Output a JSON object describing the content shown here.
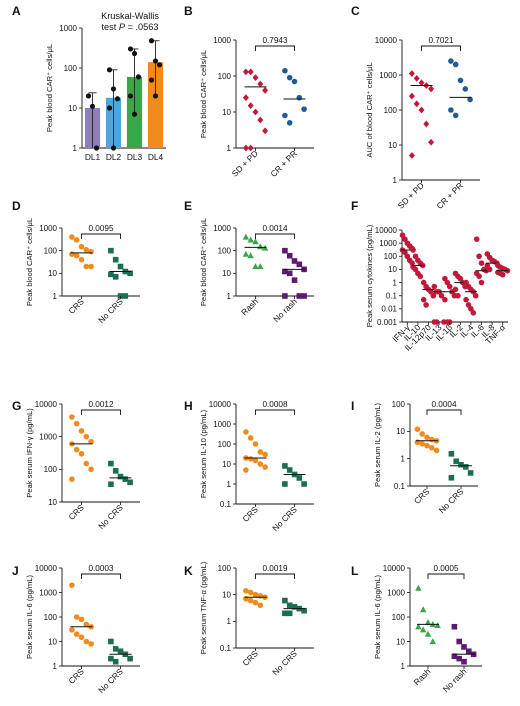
{
  "chart_data": [
    {
      "type": "bar",
      "panel": "A",
      "title": "Kruskal-Wallis\ntest P = .0563",
      "ylabel": "Peak blood CAR⁺ cells/μL",
      "ylim": [
        1,
        1000
      ],
      "scale": "log",
      "categories": [
        "DL1",
        "DL2",
        "DL3",
        "DL4"
      ],
      "colors": [
        "#8f7fb8",
        "#4fa6dd",
        "#3aa64a",
        "#f08b1d"
      ],
      "values": [
        10,
        18,
        60,
        140
      ],
      "err_low": [
        1,
        1,
        7,
        20
      ],
      "err_high": [
        24,
        90,
        300,
        480
      ],
      "points": [
        [
          20,
          11,
          1
        ],
        [
          90,
          30,
          17,
          10,
          1
        ],
        [
          300,
          230,
          60,
          20,
          7
        ],
        [
          480,
          150,
          120,
          50,
          20
        ]
      ]
    },
    {
      "type": "scatter",
      "panel": "B",
      "ylabel": "Peak blood CAR⁺ cells/μL",
      "ylim": [
        1,
        1000
      ],
      "scale": "log",
      "pvalue": "0.7943",
      "categories": [
        "SD + PD",
        "CR + PR"
      ],
      "colors": [
        "#c01a3a",
        "#1f5c97"
      ],
      "markers": [
        "diamond",
        "circle"
      ],
      "medians": [
        50,
        23
      ],
      "points": [
        [
          130,
          130,
          90,
          60,
          40,
          25,
          15,
          10,
          6,
          3,
          1,
          1
        ],
        [
          140,
          90,
          70,
          25,
          12,
          8,
          5
        ]
      ]
    },
    {
      "type": "scatter",
      "panel": "C",
      "ylabel": "AUC of blood CAR⁺ cells/μL",
      "ylim": [
        1,
        10000
      ],
      "scale": "log",
      "pvalue": "0.7021",
      "categories": [
        "SD + PD",
        "CR + PR"
      ],
      "colors": [
        "#c01a3a",
        "#1f5c97"
      ],
      "markers": [
        "diamond",
        "circle"
      ],
      "medians": [
        500,
        230
      ],
      "points": [
        [
          1100,
          800,
          600,
          500,
          400,
          250,
          150,
          100,
          40,
          12,
          5
        ],
        [
          2500,
          2000,
          700,
          400,
          200,
          100,
          70
        ]
      ]
    },
    {
      "type": "scatter",
      "panel": "D",
      "ylabel": "Peak blood CAR⁺ cells/μL",
      "ylim": [
        1,
        1000
      ],
      "scale": "log",
      "pvalue": "0.0095",
      "categories": [
        "CRS",
        "No CRS"
      ],
      "colors": [
        "#f08b1d",
        "#1b6e52"
      ],
      "markers": [
        "circle",
        "square"
      ],
      "medians": [
        80,
        12
      ],
      "points": [
        [
          400,
          300,
          150,
          110,
          90,
          70,
          60,
          40,
          20,
          20
        ],
        [
          100,
          40,
          20,
          12,
          10,
          9,
          7,
          1,
          1
        ]
      ]
    },
    {
      "type": "scatter",
      "panel": "E",
      "ylabel": "Peak blood CAR⁺ cells/μL",
      "ylim": [
        1,
        1000
      ],
      "scale": "log",
      "pvalue": "0.0014",
      "categories": [
        "Rash",
        "No rash"
      ],
      "colors": [
        "#3aa64a",
        "#5c1a73"
      ],
      "markers": [
        "triangle",
        "square"
      ],
      "medians": [
        140,
        15
      ],
      "points": [
        [
          400,
          300,
          250,
          150,
          130,
          70,
          60,
          20,
          20
        ],
        [
          100,
          60,
          35,
          25,
          15,
          12,
          10,
          5,
          1,
          1,
          1
        ]
      ]
    },
    {
      "type": "scatter",
      "panel": "F",
      "ylabel": "Peak serum cytokines (pg/mL)",
      "ylim": [
        0.001,
        10000
      ],
      "scale": "log",
      "categories": [
        "IFN-γ",
        "IL-10",
        "IL-12p70",
        "IL-13",
        "IL-1β",
        "IL-2",
        "IL-4",
        "IL-6",
        "IL-8",
        "TNF-α"
      ],
      "colors": [
        "#c01a3a"
      ],
      "markers": [
        "circle"
      ],
      "medians": [
        300,
        20,
        0.3,
        0.2,
        0.2,
        1,
        0.2,
        8,
        30,
        8
      ],
      "points": [
        [
          4000,
          2000,
          1000,
          600,
          400,
          300,
          200,
          100,
          50,
          30
        ],
        [
          300,
          100,
          50,
          30,
          20,
          15,
          10,
          5,
          3
        ],
        [
          1,
          0.5,
          0.3,
          0.2,
          0.1,
          0.05,
          0.02
        ],
        [
          0.5,
          0.2,
          0.2,
          0.1,
          0.001,
          0.001,
          0.001
        ],
        [
          2,
          1,
          0.5,
          0.2,
          0.1,
          0.05,
          0.001,
          0.001
        ],
        [
          5,
          3,
          2,
          1,
          0.5,
          0.3,
          0.1
        ],
        [
          1,
          0.5,
          0.3,
          0.2,
          0.1,
          0.05,
          0.02,
          0.01,
          0.005
        ],
        [
          2000,
          100,
          30,
          10,
          8,
          5,
          3,
          1
        ],
        [
          150,
          80,
          50,
          40,
          30,
          20,
          10
        ],
        [
          20,
          15,
          12,
          10,
          8,
          6,
          5,
          4
        ]
      ]
    },
    {
      "type": "scatter",
      "panel": "G",
      "ylabel": "Peak serum IFN-γ (pg/mL)",
      "ylim": [
        10,
        10000
      ],
      "scale": "log",
      "pvalue": "0.0012",
      "categories": [
        "CRS",
        "No CRS"
      ],
      "colors": [
        "#f08b1d",
        "#1b6e52"
      ],
      "markers": [
        "circle",
        "square"
      ],
      "medians": [
        600,
        55
      ],
      "points": [
        [
          4000,
          2500,
          1500,
          1000,
          700,
          600,
          400,
          300,
          150,
          100,
          50
        ],
        [
          150,
          90,
          60,
          50,
          40,
          35
        ]
      ]
    },
    {
      "type": "scatter",
      "panel": "H",
      "ylabel": "Peak serum IL-10 (pg/mL)",
      "ylim": [
        0.1,
        10000
      ],
      "scale": "log",
      "pvalue": "0.0008",
      "categories": [
        "CRS",
        "No CRS"
      ],
      "colors": [
        "#f08b1d",
        "#1b6e52"
      ],
      "markers": [
        "circle",
        "square"
      ],
      "medians": [
        20,
        3
      ],
      "points": [
        [
          400,
          200,
          100,
          40,
          30,
          20,
          18,
          15,
          10,
          7,
          5
        ],
        [
          8,
          5,
          3,
          2,
          1,
          1
        ]
      ]
    },
    {
      "type": "scatter",
      "panel": "I",
      "ylabel": "Peak serum IL-2 (pg/mL)",
      "ylim": [
        0.1,
        100
      ],
      "scale": "log",
      "pvalue": "0.0004",
      "categories": [
        "CRS",
        "No CRS"
      ],
      "colors": [
        "#f08b1d",
        "#1b6e52"
      ],
      "markers": [
        "circle",
        "square"
      ],
      "medians": [
        4.5,
        0.55
      ],
      "points": [
        [
          12,
          8,
          6,
          5,
          4.5,
          4,
          3.5,
          3,
          2.5,
          2
        ],
        [
          1.5,
          0.8,
          0.6,
          0.5,
          0.3,
          0.2
        ]
      ]
    },
    {
      "type": "scatter",
      "panel": "J",
      "ylabel": "Peak serum IL-6 (pg/mL)",
      "ylim": [
        1,
        10000
      ],
      "scale": "log",
      "pvalue": "0.0003",
      "categories": [
        "CRS",
        "No CRS"
      ],
      "colors": [
        "#f08b1d",
        "#1b6e52"
      ],
      "markers": [
        "circle",
        "square"
      ],
      "medians": [
        40,
        3
      ],
      "points": [
        [
          2000,
          100,
          80,
          50,
          40,
          30,
          20,
          15,
          10,
          8
        ],
        [
          10,
          5,
          4,
          3,
          2,
          2,
          1.5
        ]
      ]
    },
    {
      "type": "scatter",
      "panel": "K",
      "ylabel": "Peak serum TNF-α (pg/mL)",
      "ylim": [
        0.1,
        100
      ],
      "scale": "log",
      "pvalue": "0.0019",
      "categories": [
        "CRS",
        "No CRS"
      ],
      "colors": [
        "#f08b1d",
        "#1b6e52"
      ],
      "markers": [
        "circle",
        "square"
      ],
      "medians": [
        8,
        3
      ],
      "points": [
        [
          14,
          12,
          10,
          9,
          8,
          7,
          6,
          5,
          4
        ],
        [
          6,
          4,
          3.5,
          3,
          2.5,
          2,
          2
        ]
      ]
    },
    {
      "type": "scatter",
      "panel": "L",
      "ylabel": "Peak serum IL-6 (pg/mL)",
      "ylim": [
        1,
        10000
      ],
      "scale": "log",
      "pvalue": "0.0005",
      "categories": [
        "Rash",
        "No rash"
      ],
      "colors": [
        "#3aa64a",
        "#5c1a73"
      ],
      "markers": [
        "triangle",
        "square"
      ],
      "medians": [
        50,
        3
      ],
      "points": [
        [
          1500,
          200,
          60,
          50,
          45,
          40,
          30,
          20,
          10
        ],
        [
          40,
          10,
          6,
          4,
          3,
          2.5,
          2,
          1.5
        ]
      ]
    }
  ]
}
